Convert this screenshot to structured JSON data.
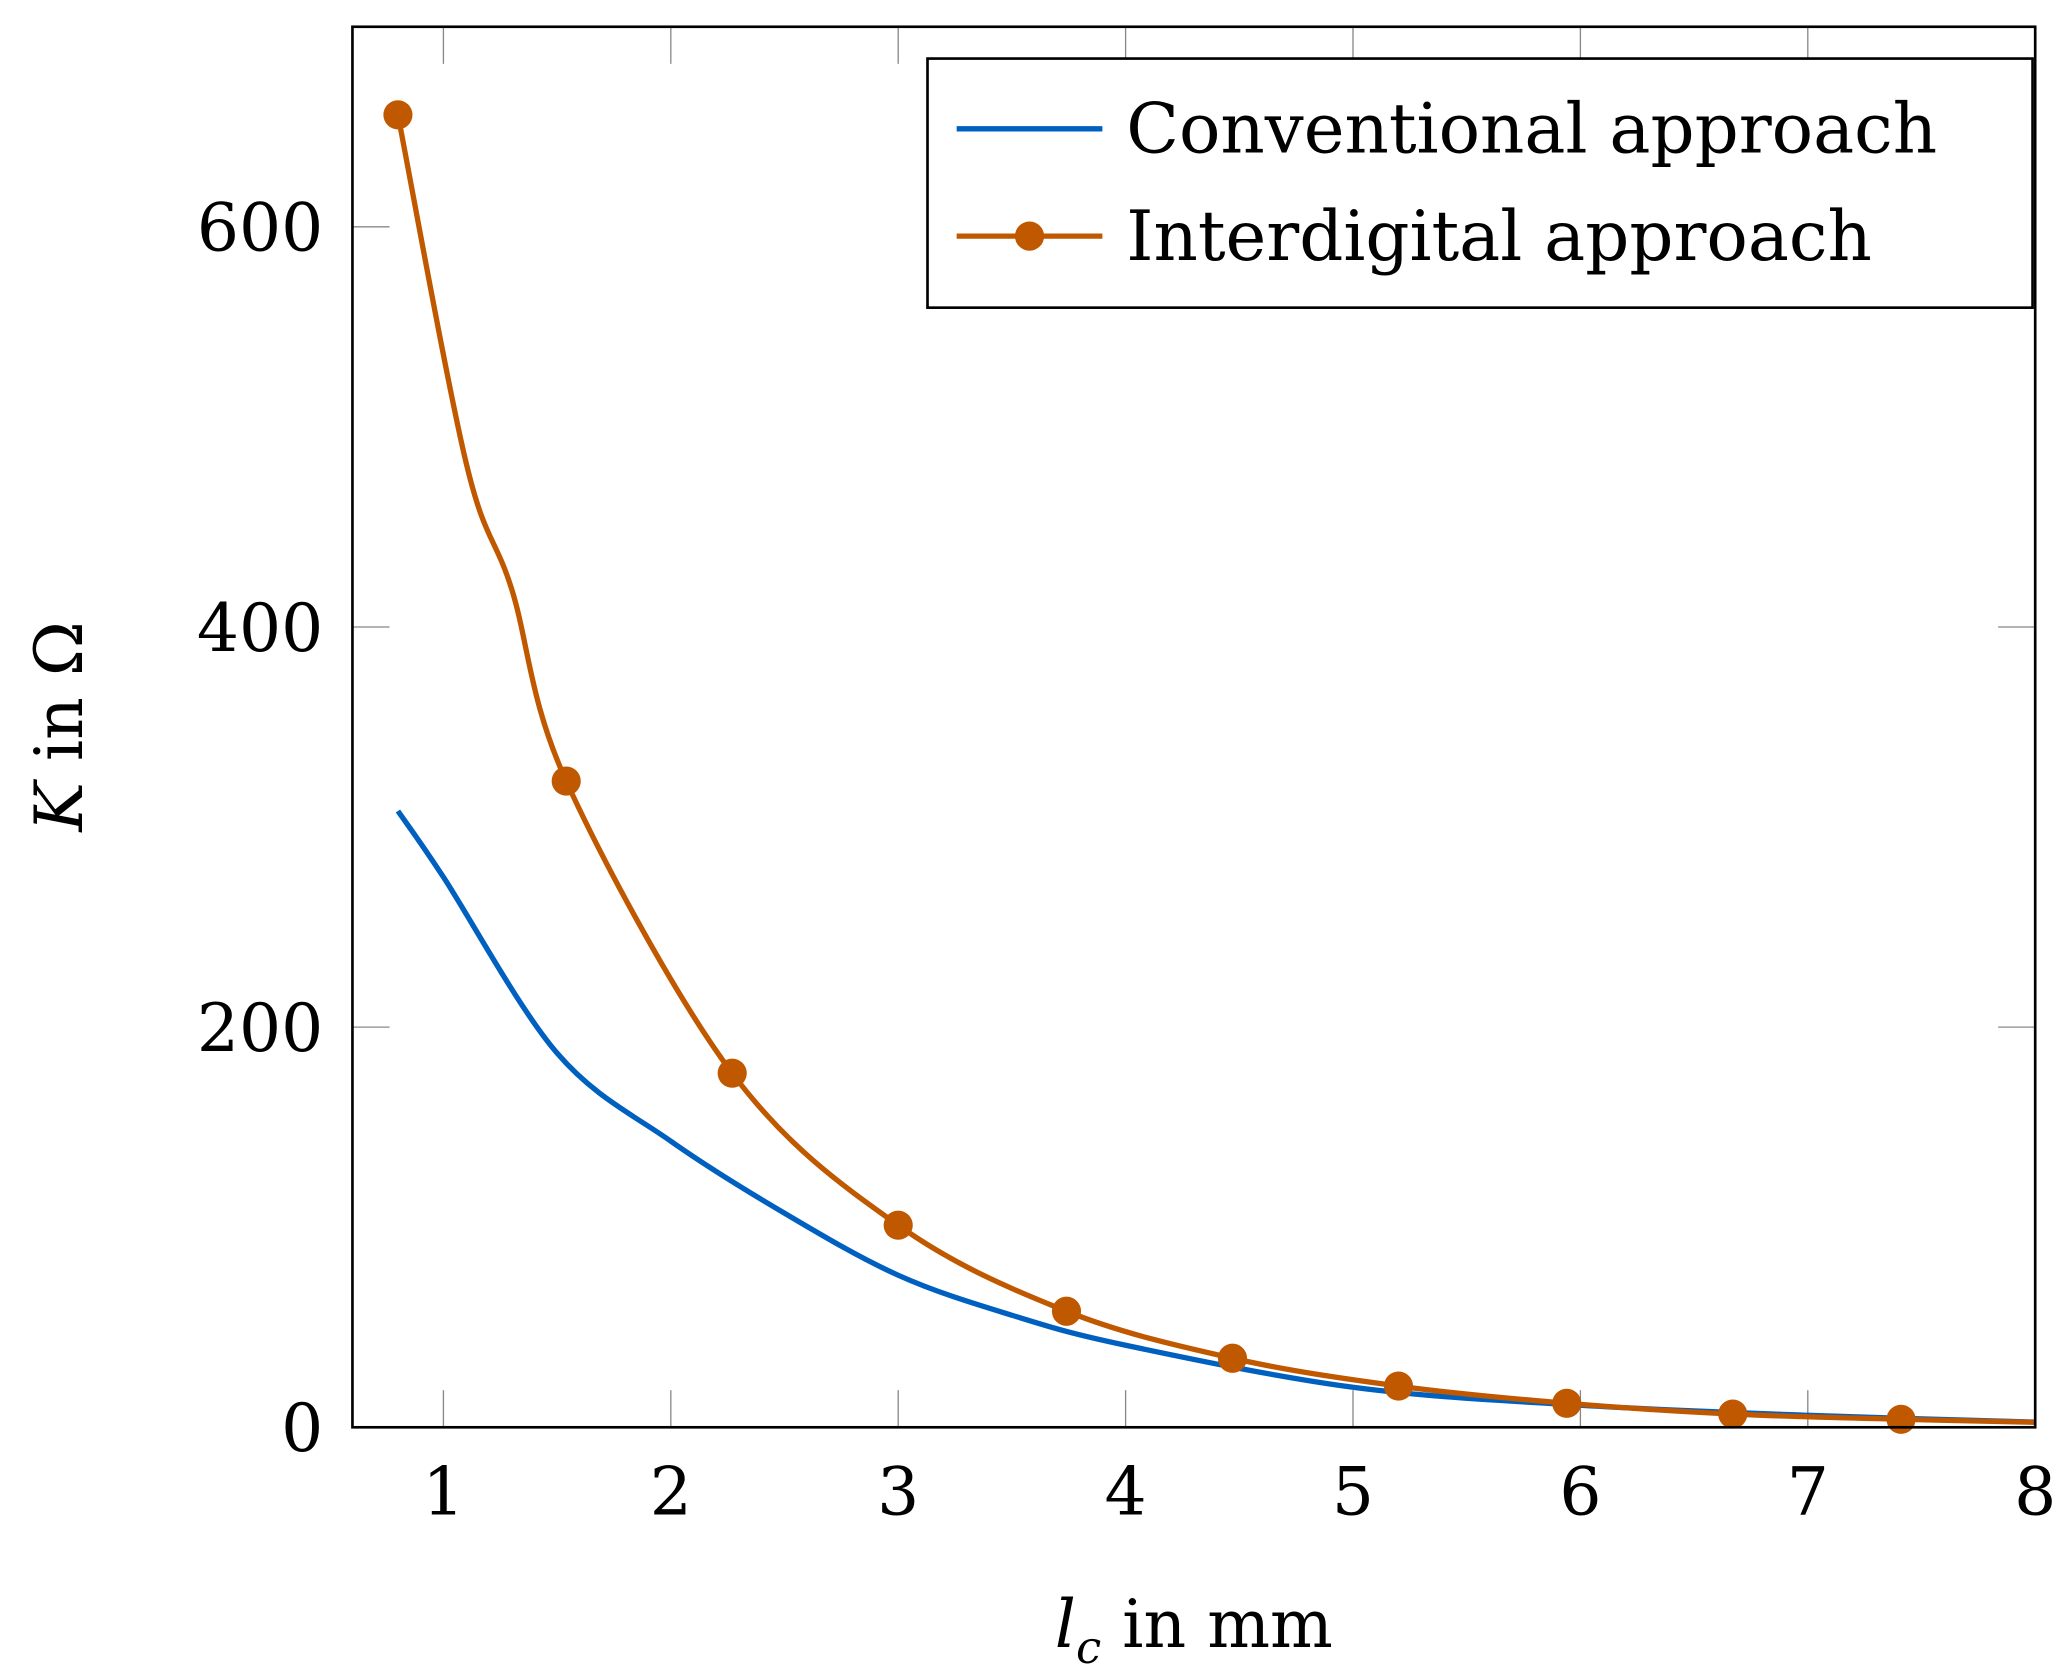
{
  "chart_data": {
    "type": "line",
    "title": "",
    "xlabel": "l_c in mm",
    "xlabel_parts": {
      "var": "l",
      "sub": "c",
      "rest": " in mm"
    },
    "ylabel": "K in Ω",
    "ylabel_parts": {
      "var": "K",
      "rest": " in Ω"
    },
    "xlim": [
      0.6,
      8
    ],
    "ylim": [
      0,
      700
    ],
    "xticks": [
      1,
      2,
      3,
      4,
      5,
      6,
      7,
      8
    ],
    "xtick_labels": [
      "1",
      "2",
      "3",
      "4",
      "5",
      "6",
      "7",
      "8"
    ],
    "yticks": [
      0,
      200,
      400,
      600
    ],
    "ytick_labels": [
      "0",
      "200",
      "400",
      "600"
    ],
    "grid": false,
    "legend_position": "top-right",
    "series": [
      {
        "name": "Conventional approach",
        "color": "#0060c0",
        "marker": "none",
        "x": [
          0.8,
          1.0,
          1.5,
          2.0,
          2.5,
          3.0,
          3.5,
          4.0,
          5.0,
          6.0,
          7.0,
          8.0
        ],
        "values": [
          308,
          275,
          187,
          143,
          107,
          76,
          56,
          41,
          20,
          11,
          6,
          2.6
        ]
      },
      {
        "name": "Interdigital approach",
        "color": "#c05800",
        "marker": "circle",
        "x": [
          0.8,
          1.1,
          1.3,
          1.54,
          2.27,
          3.0,
          3.74,
          4.47,
          5.2,
          5.94,
          6.67,
          7.41,
          8.0
        ],
        "values": [
          656,
          482,
          419,
          323,
          177,
          101,
          58,
          34.5,
          20.6,
          12,
          6.6,
          4,
          2.5
        ],
        "marker_x": [
          0.8,
          1.54,
          2.27,
          3.0,
          3.74,
          4.47,
          5.2,
          5.94,
          6.67,
          7.41
        ]
      }
    ]
  }
}
